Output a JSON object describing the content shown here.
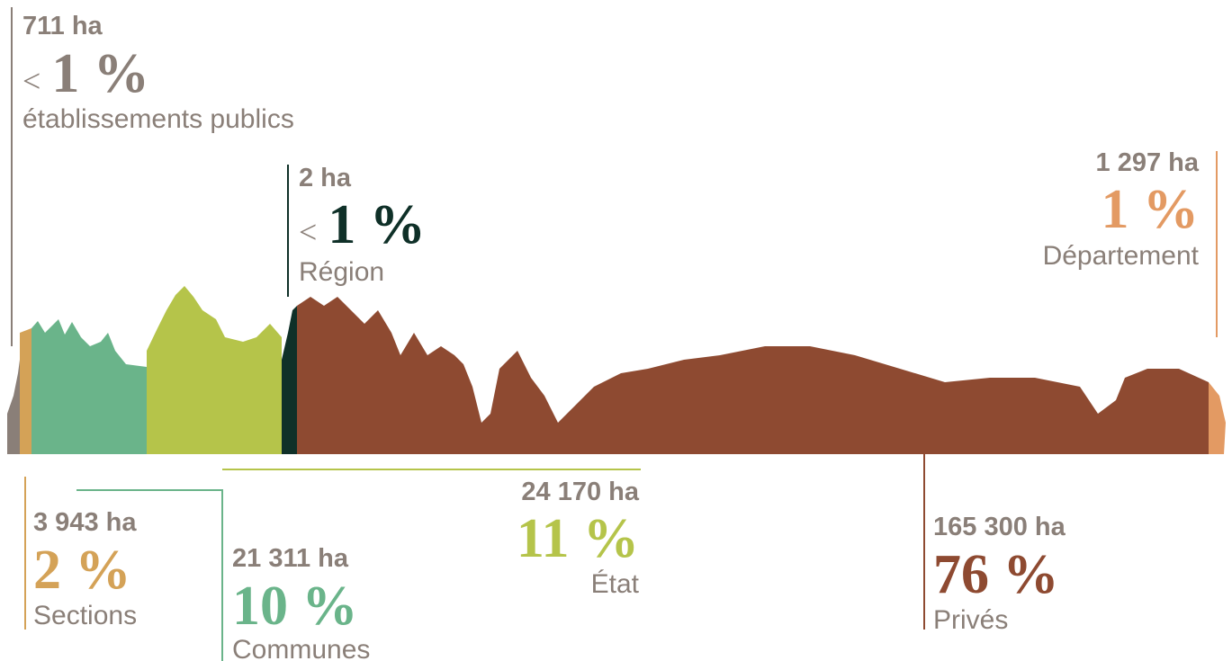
{
  "items": [
    {
      "area": "711 ha",
      "prefix": "<",
      "percent": "1 %",
      "name": "établissements publics"
    },
    {
      "area": "2 ha",
      "prefix": "<",
      "percent": "1 %",
      "name": "Région"
    },
    {
      "area": "1 297 ha",
      "percent": "1 %",
      "name": "Département"
    },
    {
      "area": "3 943 ha",
      "percent": "2 %",
      "name": "Sections"
    },
    {
      "area": "21 311 ha",
      "percent": "10 %",
      "name": "Communes"
    },
    {
      "area": "24 170 ha",
      "percent": "11 %",
      "name": "État"
    },
    {
      "area": "165 300 ha",
      "percent": "76 %",
      "name": "Privés"
    }
  ]
}
